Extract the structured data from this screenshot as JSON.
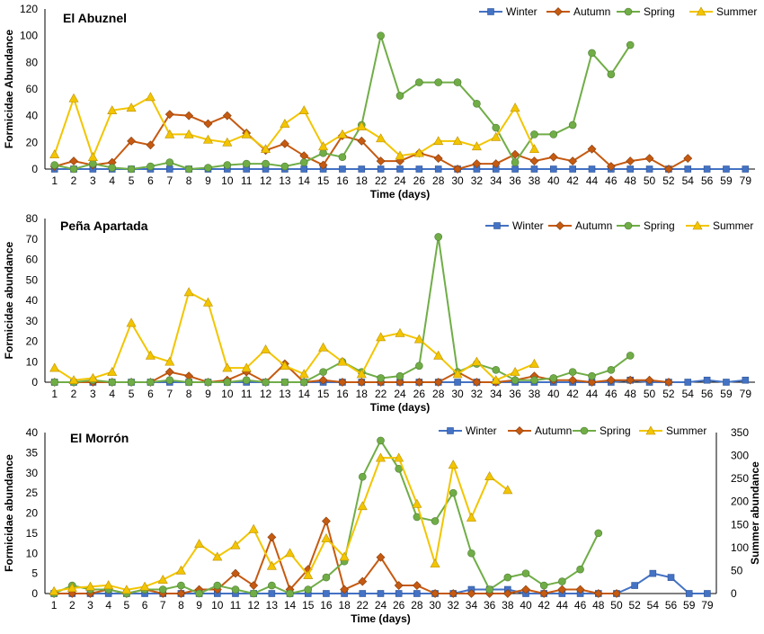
{
  "chart_data": [
    {
      "type": "line",
      "title": "El Abuznel",
      "xlabel": "Time (days)",
      "ylabel": "Formicidae Abundance",
      "ylim": [
        0,
        120
      ],
      "yticks": [
        0,
        20,
        40,
        60,
        80,
        100,
        120
      ],
      "categories": [
        "1",
        "2",
        "3",
        "4",
        "5",
        "6",
        "7",
        "8",
        "9",
        "10",
        "11",
        "12",
        "13",
        "14",
        "15",
        "16",
        "18",
        "22",
        "24",
        "26",
        "28",
        "30",
        "32",
        "34",
        "36",
        "38",
        "40",
        "42",
        "44",
        "46",
        "48",
        "50",
        "52",
        "54",
        "56",
        "59",
        "79"
      ],
      "series": [
        {
          "name": "Winter",
          "color": "#4472C4",
          "marker": "square",
          "values": [
            0,
            0,
            0,
            0,
            0,
            0,
            0,
            0,
            0,
            0,
            0,
            0,
            0,
            0,
            0,
            0,
            0,
            0,
            0,
            0,
            0,
            0,
            0,
            0,
            0,
            0,
            0,
            0,
            0,
            0,
            0,
            0,
            0,
            0,
            0,
            0,
            0
          ]
        },
        {
          "name": "Autumn",
          "color": "#C55A11",
          "marker": "diamond",
          "values": [
            2,
            6,
            3,
            5,
            21,
            18,
            41,
            40,
            34,
            40,
            27,
            14,
            19,
            10,
            3,
            25,
            21,
            6,
            6,
            12,
            8,
            0,
            4,
            4,
            11,
            6,
            9,
            6,
            15,
            2,
            6,
            8,
            0,
            8,
            null,
            null,
            null
          ]
        },
        {
          "name": "Spring",
          "color": "#70AD47",
          "marker": "circle",
          "values": [
            3,
            0,
            4,
            1,
            0,
            2,
            5,
            0,
            1,
            3,
            4,
            4,
            2,
            5,
            12,
            9,
            33,
            100,
            55,
            65,
            65,
            65,
            49,
            31,
            5,
            26,
            26,
            33,
            87,
            71,
            93,
            null,
            null,
            null,
            null,
            null,
            null
          ]
        },
        {
          "name": "Summer",
          "color": "#F2C500",
          "marker": "triangle",
          "values": [
            11,
            53,
            9,
            44,
            46,
            54,
            26,
            26,
            22,
            20,
            26,
            15,
            34,
            44,
            17,
            26,
            32,
            23,
            10,
            12,
            21,
            21,
            17,
            24,
            46,
            15,
            null,
            null,
            null,
            null,
            null,
            null,
            null,
            null,
            null,
            null,
            null
          ]
        }
      ]
    },
    {
      "type": "line",
      "title": "Peña Apartada",
      "xlabel": "Time (days)",
      "ylabel": "Formicidae abundance",
      "ylim": [
        0,
        80
      ],
      "yticks": [
        0,
        10,
        20,
        30,
        40,
        50,
        60,
        70,
        80
      ],
      "categories": [
        "1",
        "2",
        "3",
        "4",
        "5",
        "6",
        "7",
        "8",
        "9",
        "10",
        "11",
        "12",
        "13",
        "14",
        "15",
        "16",
        "18",
        "22",
        "24",
        "26",
        "28",
        "30",
        "32",
        "34",
        "36",
        "38",
        "40",
        "42",
        "44",
        "46",
        "48",
        "50",
        "52",
        "54",
        "56",
        "59",
        "79"
      ],
      "series": [
        {
          "name": "Winter",
          "color": "#4472C4",
          "marker": "square",
          "values": [
            0,
            0,
            0,
            0,
            0,
            0,
            0,
            0,
            0,
            0,
            0,
            0,
            0,
            0,
            0,
            0,
            0,
            0,
            0,
            0,
            0,
            0,
            0,
            0,
            0,
            0,
            0,
            0,
            0,
            0,
            1,
            0,
            0,
            0,
            1,
            0,
            1
          ]
        },
        {
          "name": "Autumn",
          "color": "#C55A11",
          "marker": "diamond",
          "values": [
            0,
            0,
            0,
            0,
            0,
            0,
            5,
            3,
            0,
            1,
            5,
            0,
            9,
            0,
            1,
            0,
            0,
            0,
            0,
            0,
            0,
            5,
            0,
            0,
            1,
            3,
            1,
            1,
            0,
            1,
            1,
            1,
            0,
            null,
            null,
            null,
            null
          ]
        },
        {
          "name": "Spring",
          "color": "#70AD47",
          "marker": "circle",
          "values": [
            0,
            0,
            1,
            0,
            0,
            0,
            1,
            0,
            0,
            0,
            1,
            0,
            0,
            0,
            5,
            10,
            5,
            2,
            3,
            8,
            71,
            5,
            9,
            6,
            1,
            1,
            2,
            5,
            3,
            6,
            13,
            null,
            null,
            null,
            null,
            null,
            null
          ]
        },
        {
          "name": "Summer",
          "color": "#F2C500",
          "marker": "triangle",
          "values": [
            7,
            1,
            2,
            5,
            29,
            13,
            10,
            44,
            39,
            7,
            7,
            16,
            8,
            4,
            17,
            10,
            4,
            22,
            24,
            21,
            13,
            4,
            10,
            1,
            5,
            9,
            null,
            null,
            null,
            null,
            null,
            null,
            null,
            null,
            null,
            null,
            null
          ]
        }
      ]
    },
    {
      "type": "line",
      "title": "El Morrón",
      "xlabel": "Time (days)",
      "ylabel": "Formicidae abundance",
      "y2label": "Summer abundance",
      "ylim": [
        0,
        40
      ],
      "y2lim": [
        0,
        350
      ],
      "yticks": [
        0,
        5,
        10,
        15,
        20,
        25,
        30,
        35,
        40
      ],
      "y2ticks": [
        0,
        50,
        100,
        150,
        200,
        250,
        300,
        350
      ],
      "categories": [
        "1",
        "2",
        "3",
        "4",
        "5",
        "6",
        "7",
        "8",
        "9",
        "10",
        "11",
        "12",
        "13",
        "14",
        "15",
        "16",
        "18",
        "22",
        "24",
        "26",
        "28",
        "30",
        "32",
        "34",
        "36",
        "38",
        "40",
        "42",
        "44",
        "46",
        "48",
        "50",
        "52",
        "54",
        "56",
        "59",
        "79"
      ],
      "series": [
        {
          "name": "Winter",
          "color": "#4472C4",
          "marker": "square",
          "axis": "left",
          "values": [
            0,
            0,
            0,
            0,
            0,
            0,
            0,
            0,
            0,
            0,
            0,
            0,
            0,
            0,
            0,
            0,
            0,
            0,
            0,
            0,
            0,
            0,
            0,
            1,
            1,
            1,
            0,
            0,
            0,
            0,
            0,
            0,
            2,
            5,
            4,
            0,
            0
          ]
        },
        {
          "name": "Autumn",
          "color": "#C55A11",
          "marker": "diamond",
          "axis": "left",
          "values": [
            0,
            0,
            0,
            1,
            0,
            1,
            0,
            0,
            1,
            1,
            5,
            2,
            14,
            1,
            6,
            18,
            1,
            3,
            9,
            2,
            2,
            0,
            0,
            0,
            0,
            0,
            1,
            0,
            1,
            1,
            0,
            0,
            null,
            null,
            null,
            null,
            null
          ]
        },
        {
          "name": "Spring",
          "color": "#70AD47",
          "marker": "circle",
          "axis": "left",
          "values": [
            0,
            2,
            1,
            1,
            0,
            1,
            1,
            2,
            0,
            2,
            1,
            0,
            2,
            0,
            1,
            4,
            8,
            29,
            38,
            31,
            19,
            18,
            25,
            10,
            1,
            4,
            5,
            2,
            3,
            6,
            15,
            null,
            null,
            null,
            null,
            null,
            null
          ]
        },
        {
          "name": "Summer",
          "color": "#F2C500",
          "marker": "triangle",
          "axis": "right",
          "values": [
            5,
            12,
            15,
            18,
            8,
            15,
            30,
            50,
            108,
            80,
            105,
            140,
            60,
            88,
            40,
            120,
            80,
            190,
            295,
            295,
            195,
            65,
            280,
            165,
            255,
            225,
            null,
            null,
            null,
            null,
            null,
            null,
            null,
            null,
            null,
            null,
            null
          ]
        }
      ]
    }
  ]
}
